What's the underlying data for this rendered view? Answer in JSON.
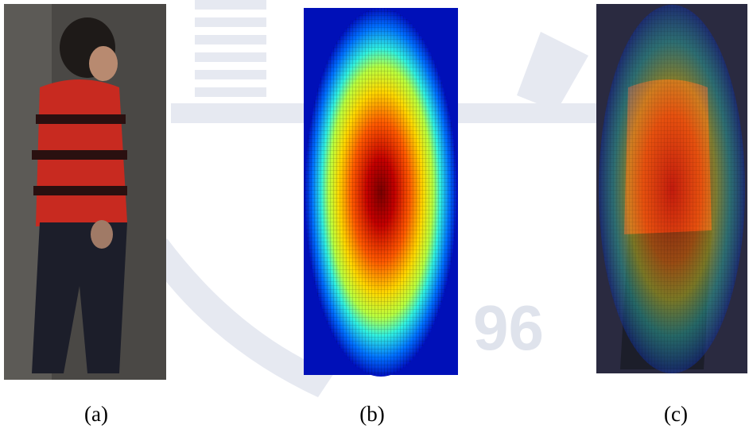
{
  "figure": {
    "panels": [
      {
        "label": "(a)"
      },
      {
        "label": "(b)"
      },
      {
        "label": "(c)"
      }
    ]
  },
  "watermark": {
    "text": "96"
  }
}
